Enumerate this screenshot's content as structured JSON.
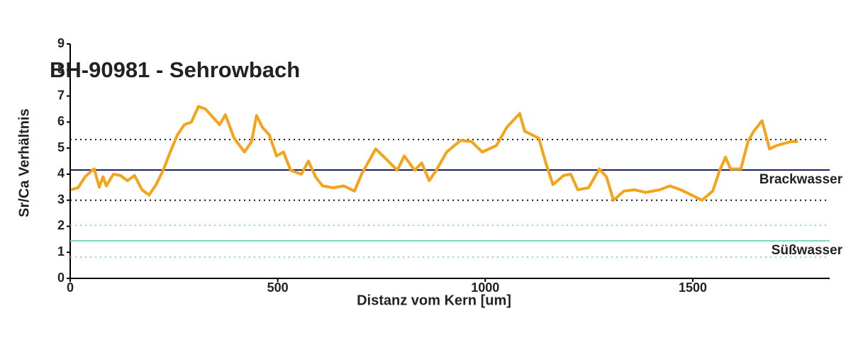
{
  "chart_data": {
    "type": "line",
    "title": "BH-90981 - Sehrowbach",
    "x_label": "Distanz vom Kern [um]",
    "y_label": "Sr/Ca Verhältnis",
    "color": "#f5a31a",
    "x": [
      2,
      19,
      36,
      53,
      58,
      70,
      79,
      87,
      104,
      121,
      138,
      155,
      173,
      190,
      207,
      224,
      241,
      258,
      275,
      292,
      309,
      326,
      343,
      360,
      374,
      395,
      420,
      437,
      449,
      463,
      480,
      497,
      514,
      531,
      557,
      574,
      591,
      608,
      634,
      659,
      685,
      702,
      736,
      762,
      788,
      805,
      830,
      847,
      865,
      882,
      907,
      941,
      967,
      993,
      1027,
      1052,
      1083,
      1095,
      1129,
      1146,
      1163,
      1189,
      1206,
      1223,
      1249,
      1275,
      1292,
      1309,
      1334,
      1360,
      1386,
      1420,
      1445,
      1471,
      1497,
      1522,
      1548,
      1565,
      1579,
      1591,
      1616,
      1633,
      1647,
      1667,
      1685,
      1702,
      1736,
      1753
    ],
    "values": [
      3.4,
      3.48,
      3.9,
      4.15,
      4.2,
      3.5,
      3.9,
      3.55,
      4.0,
      3.95,
      3.75,
      3.95,
      3.4,
      3.2,
      3.6,
      4.15,
      4.85,
      5.5,
      5.9,
      6.0,
      6.6,
      6.5,
      6.2,
      5.9,
      6.28,
      5.38,
      4.85,
      5.25,
      6.25,
      5.8,
      5.5,
      4.7,
      4.85,
      4.15,
      4.0,
      4.5,
      3.9,
      3.55,
      3.48,
      3.55,
      3.35,
      4.0,
      4.97,
      4.57,
      4.15,
      4.7,
      4.15,
      4.43,
      3.75,
      4.15,
      4.85,
      5.3,
      5.25,
      4.85,
      5.1,
      5.8,
      6.33,
      5.65,
      5.38,
      4.43,
      3.6,
      3.95,
      4.0,
      3.4,
      3.48,
      4.2,
      3.9,
      3.0,
      3.35,
      3.4,
      3.3,
      3.4,
      3.55,
      3.4,
      3.2,
      3.0,
      3.35,
      4.15,
      4.65,
      4.2,
      4.2,
      5.25,
      5.65,
      6.05,
      4.97,
      5.1,
      5.25,
      5.25
    ],
    "xlim": [
      0,
      1830
    ],
    "xticks": [
      0,
      500,
      1000,
      1500
    ],
    "ylim": [
      0,
      9
    ],
    "yticks": [
      0,
      1,
      2,
      3,
      4,
      5,
      6,
      7,
      8,
      9
    ],
    "reference_lines": [
      {
        "value": 5.33,
        "color": "#000000",
        "style": "dotted"
      },
      {
        "value": 4.16,
        "color": "#1a1f5e",
        "style": "solid",
        "label": "Brackwasser"
      },
      {
        "value": 3.0,
        "color": "#000000",
        "style": "dotted"
      },
      {
        "value": 2.04,
        "color": "#7fd8c4",
        "style": "dotted"
      },
      {
        "value": 1.44,
        "color": "#7fd8c4",
        "style": "solid",
        "label": "Süßwasser"
      },
      {
        "value": 0.82,
        "color": "#7fd8c4",
        "style": "dotted"
      }
    ]
  }
}
